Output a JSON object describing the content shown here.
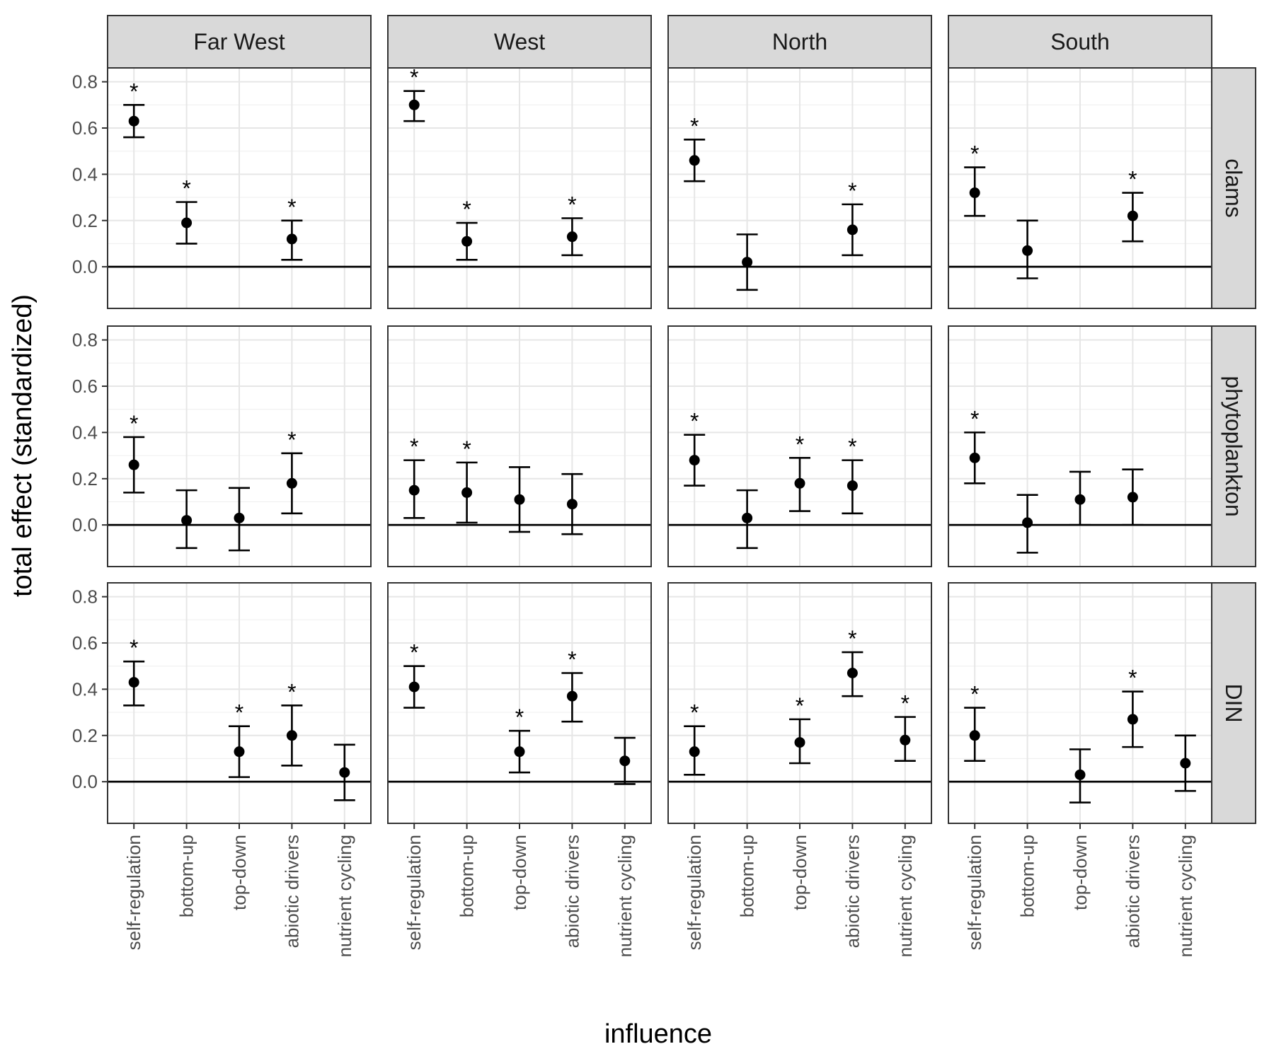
{
  "chart_data": {
    "type": "scatter",
    "xlabel": "influence",
    "ylabel": "total effect (standardized)",
    "ylim": [
      -0.18,
      0.86
    ],
    "yticks": [
      0.0,
      0.2,
      0.4,
      0.6,
      0.8
    ],
    "categories": [
      "self-regulation",
      "bottom-up",
      "top-down",
      "abiotic drivers",
      "nutrient cycling"
    ],
    "columns": [
      "Far West",
      "West",
      "North",
      "South"
    ],
    "rows": [
      "clams",
      "phytoplankton",
      "DIN"
    ],
    "grid": true,
    "zero_line": true,
    "significance_marker": "*",
    "panels": [
      {
        "row": "clams",
        "col": "Far West",
        "points": [
          {
            "x": "self-regulation",
            "y": 0.63,
            "lo": 0.56,
            "hi": 0.7,
            "sig": true
          },
          {
            "x": "bottom-up",
            "y": 0.19,
            "lo": 0.1,
            "hi": 0.28,
            "sig": true
          },
          {
            "x": "abiotic drivers",
            "y": 0.12,
            "lo": 0.03,
            "hi": 0.2,
            "sig": true
          }
        ]
      },
      {
        "row": "clams",
        "col": "West",
        "points": [
          {
            "x": "self-regulation",
            "y": 0.7,
            "lo": 0.63,
            "hi": 0.76,
            "sig": true
          },
          {
            "x": "bottom-up",
            "y": 0.11,
            "lo": 0.03,
            "hi": 0.19,
            "sig": true
          },
          {
            "x": "abiotic drivers",
            "y": 0.13,
            "lo": 0.05,
            "hi": 0.21,
            "sig": true
          }
        ]
      },
      {
        "row": "clams",
        "col": "North",
        "points": [
          {
            "x": "self-regulation",
            "y": 0.46,
            "lo": 0.37,
            "hi": 0.55,
            "sig": true
          },
          {
            "x": "bottom-up",
            "y": 0.02,
            "lo": -0.1,
            "hi": 0.14,
            "sig": false
          },
          {
            "x": "abiotic drivers",
            "y": 0.16,
            "lo": 0.05,
            "hi": 0.27,
            "sig": true
          }
        ]
      },
      {
        "row": "clams",
        "col": "South",
        "points": [
          {
            "x": "self-regulation",
            "y": 0.32,
            "lo": 0.22,
            "hi": 0.43,
            "sig": true
          },
          {
            "x": "bottom-up",
            "y": 0.07,
            "lo": -0.05,
            "hi": 0.2,
            "sig": false
          },
          {
            "x": "abiotic drivers",
            "y": 0.22,
            "lo": 0.11,
            "hi": 0.32,
            "sig": true
          }
        ]
      },
      {
        "row": "phytoplankton",
        "col": "Far West",
        "points": [
          {
            "x": "self-regulation",
            "y": 0.26,
            "lo": 0.14,
            "hi": 0.38,
            "sig": true
          },
          {
            "x": "bottom-up",
            "y": 0.02,
            "lo": -0.1,
            "hi": 0.15,
            "sig": false
          },
          {
            "x": "top-down",
            "y": 0.03,
            "lo": -0.11,
            "hi": 0.16,
            "sig": false
          },
          {
            "x": "abiotic drivers",
            "y": 0.18,
            "lo": 0.05,
            "hi": 0.31,
            "sig": true
          }
        ]
      },
      {
        "row": "phytoplankton",
        "col": "West",
        "points": [
          {
            "x": "self-regulation",
            "y": 0.15,
            "lo": 0.03,
            "hi": 0.28,
            "sig": true
          },
          {
            "x": "bottom-up",
            "y": 0.14,
            "lo": 0.01,
            "hi": 0.27,
            "sig": true
          },
          {
            "x": "top-down",
            "y": 0.11,
            "lo": -0.03,
            "hi": 0.25,
            "sig": false
          },
          {
            "x": "abiotic drivers",
            "y": 0.09,
            "lo": -0.04,
            "hi": 0.22,
            "sig": false
          }
        ]
      },
      {
        "row": "phytoplankton",
        "col": "North",
        "points": [
          {
            "x": "self-regulation",
            "y": 0.28,
            "lo": 0.17,
            "hi": 0.39,
            "sig": true
          },
          {
            "x": "bottom-up",
            "y": 0.03,
            "lo": -0.1,
            "hi": 0.15,
            "sig": false
          },
          {
            "x": "top-down",
            "y": 0.18,
            "lo": 0.06,
            "hi": 0.29,
            "sig": true
          },
          {
            "x": "abiotic drivers",
            "y": 0.17,
            "lo": 0.05,
            "hi": 0.28,
            "sig": true
          }
        ]
      },
      {
        "row": "phytoplankton",
        "col": "South",
        "points": [
          {
            "x": "self-regulation",
            "y": 0.29,
            "lo": 0.18,
            "hi": 0.4,
            "sig": true
          },
          {
            "x": "bottom-up",
            "y": 0.01,
            "lo": -0.12,
            "hi": 0.13,
            "sig": false
          },
          {
            "x": "top-down",
            "y": 0.11,
            "lo": 0.0,
            "hi": 0.23,
            "sig": false
          },
          {
            "x": "abiotic drivers",
            "y": 0.12,
            "lo": 0.0,
            "hi": 0.24,
            "sig": false
          }
        ]
      },
      {
        "row": "DIN",
        "col": "Far West",
        "points": [
          {
            "x": "self-regulation",
            "y": 0.43,
            "lo": 0.33,
            "hi": 0.52,
            "sig": true
          },
          {
            "x": "top-down",
            "y": 0.13,
            "lo": 0.02,
            "hi": 0.24,
            "sig": true
          },
          {
            "x": "abiotic drivers",
            "y": 0.2,
            "lo": 0.07,
            "hi": 0.33,
            "sig": true
          },
          {
            "x": "nutrient cycling",
            "y": 0.04,
            "lo": -0.08,
            "hi": 0.16,
            "sig": false
          }
        ]
      },
      {
        "row": "DIN",
        "col": "West",
        "points": [
          {
            "x": "self-regulation",
            "y": 0.41,
            "lo": 0.32,
            "hi": 0.5,
            "sig": true
          },
          {
            "x": "top-down",
            "y": 0.13,
            "lo": 0.04,
            "hi": 0.22,
            "sig": true
          },
          {
            "x": "abiotic drivers",
            "y": 0.37,
            "lo": 0.26,
            "hi": 0.47,
            "sig": true
          },
          {
            "x": "nutrient cycling",
            "y": 0.09,
            "lo": -0.01,
            "hi": 0.19,
            "sig": false
          }
        ]
      },
      {
        "row": "DIN",
        "col": "North",
        "points": [
          {
            "x": "self-regulation",
            "y": 0.13,
            "lo": 0.03,
            "hi": 0.24,
            "sig": true
          },
          {
            "x": "top-down",
            "y": 0.17,
            "lo": 0.08,
            "hi": 0.27,
            "sig": true
          },
          {
            "x": "abiotic drivers",
            "y": 0.47,
            "lo": 0.37,
            "hi": 0.56,
            "sig": true
          },
          {
            "x": "nutrient cycling",
            "y": 0.18,
            "lo": 0.09,
            "hi": 0.28,
            "sig": true
          }
        ]
      },
      {
        "row": "DIN",
        "col": "South",
        "points": [
          {
            "x": "self-regulation",
            "y": 0.2,
            "lo": 0.09,
            "hi": 0.32,
            "sig": true
          },
          {
            "x": "top-down",
            "y": 0.03,
            "lo": -0.09,
            "hi": 0.14,
            "sig": false
          },
          {
            "x": "abiotic drivers",
            "y": 0.27,
            "lo": 0.15,
            "hi": 0.39,
            "sig": true
          },
          {
            "x": "nutrient cycling",
            "y": 0.08,
            "lo": -0.04,
            "hi": 0.2,
            "sig": false
          }
        ]
      }
    ]
  }
}
